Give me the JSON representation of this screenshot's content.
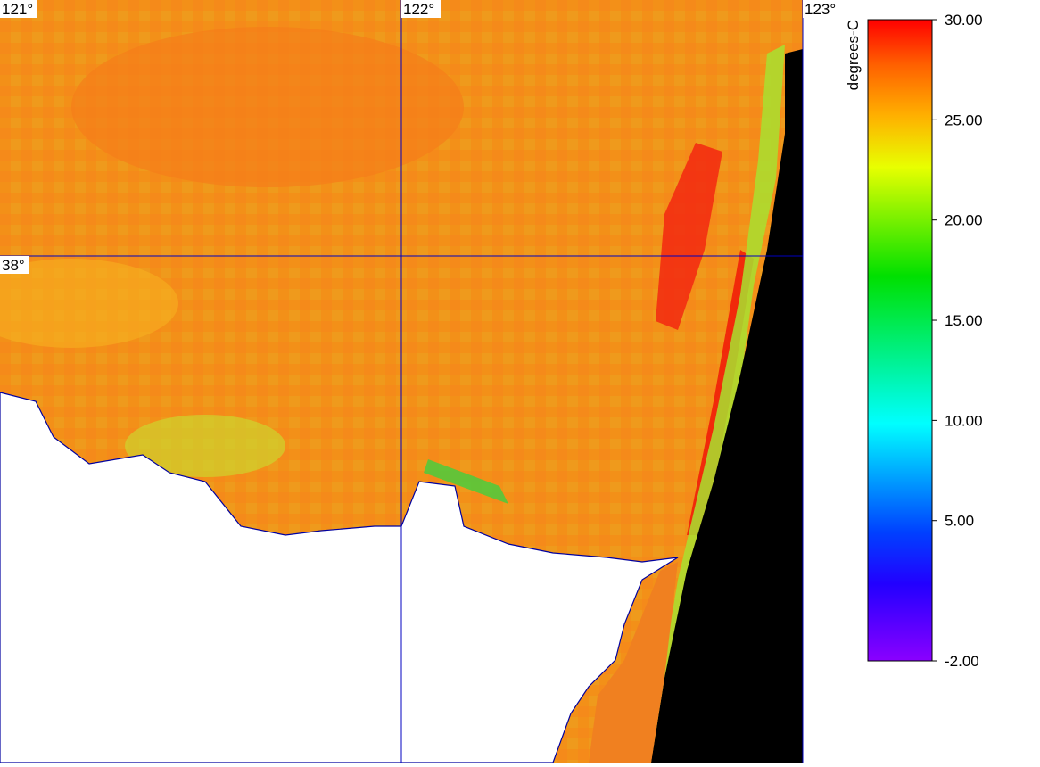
{
  "map": {
    "lon_labels": [
      "121°",
      "122°",
      "123°"
    ],
    "lat_labels": [
      "38°"
    ]
  },
  "colorbar": {
    "label": "degrees-C",
    "range": [
      -2,
      30
    ],
    "ticks": [
      {
        "value": 30,
        "label": "30.00"
      },
      {
        "value": 25,
        "label": "25.00"
      },
      {
        "value": 20,
        "label": "20.00"
      },
      {
        "value": 15,
        "label": "15.00"
      },
      {
        "value": 10,
        "label": "10.00"
      },
      {
        "value": 5,
        "label": "5.00"
      },
      {
        "value": -2,
        "label": "-2.00"
      }
    ]
  }
}
